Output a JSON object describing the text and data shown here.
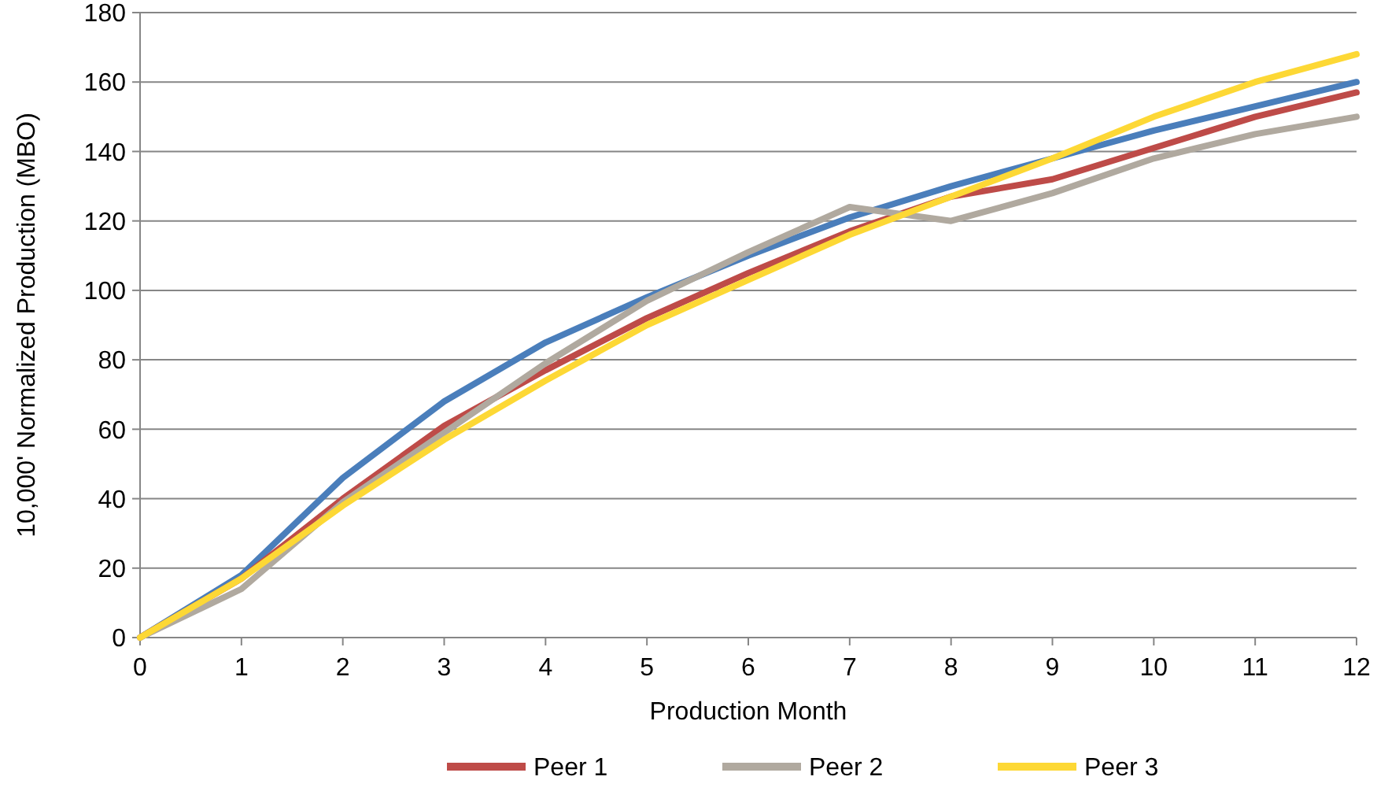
{
  "chart_data": {
    "type": "line",
    "xlabel": "Production Month",
    "ylabel": "10,000' Normalized Production  (MBO)",
    "x": [
      0,
      1,
      2,
      3,
      4,
      5,
      6,
      7,
      8,
      9,
      10,
      11,
      12
    ],
    "xlim": [
      0,
      12
    ],
    "xticks": [
      0,
      1,
      2,
      3,
      4,
      5,
      6,
      7,
      8,
      9,
      10,
      11,
      12
    ],
    "ylim": [
      0,
      180
    ],
    "yticks": [
      0,
      20,
      40,
      60,
      80,
      100,
      120,
      140,
      160,
      180
    ],
    "grid": "y",
    "legend": "bottom",
    "marker": "none",
    "line_style": "solid",
    "series": [
      {
        "color": "#4a7ebb",
        "values": [
          0,
          18,
          46,
          68,
          85,
          98,
          110,
          121,
          130,
          138,
          146,
          153,
          160
        ]
      },
      {
        "name": "Peer 1",
        "color": "#be4b48",
        "values": [
          0,
          17,
          40,
          61,
          77,
          92,
          105,
          117,
          127,
          132,
          141,
          150,
          157
        ]
      },
      {
        "name": "Peer 2",
        "color": "#b0a99f",
        "values": [
          0,
          14,
          39,
          59,
          79,
          97,
          111,
          124,
          120,
          128,
          138,
          145,
          150
        ]
      },
      {
        "name": "Peer 3",
        "color": "#fdd835",
        "values": [
          0,
          17,
          38,
          57,
          74,
          90,
          103,
          116,
          127,
          138,
          150,
          160,
          168
        ]
      }
    ]
  }
}
